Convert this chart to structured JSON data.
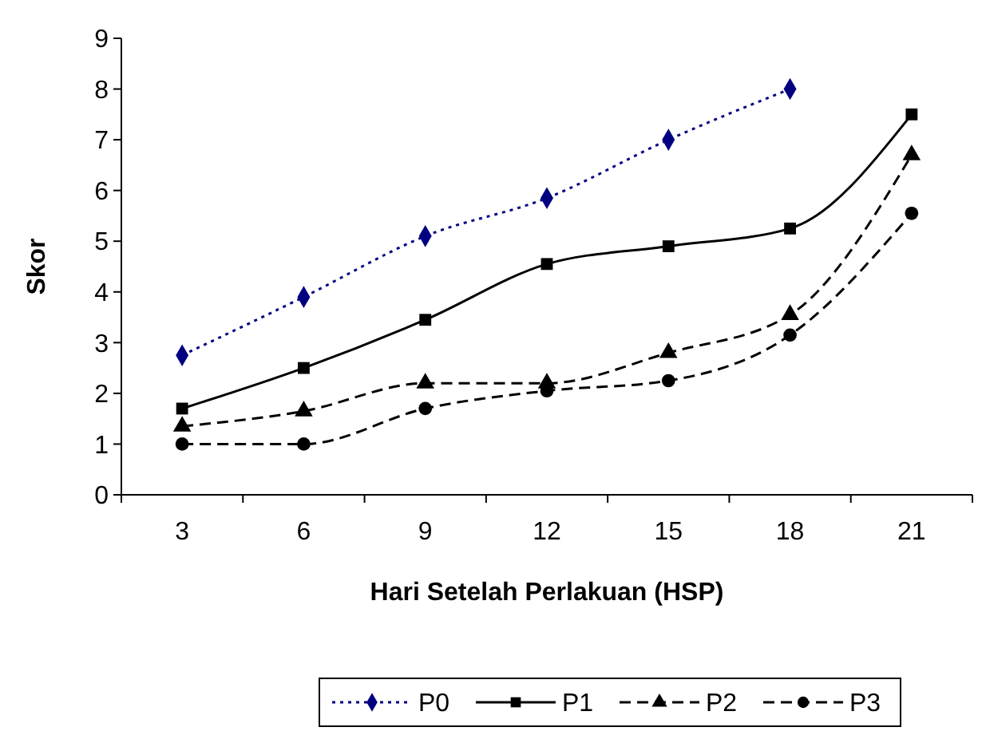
{
  "chart_data": {
    "type": "line",
    "xlabel": "Hari Setelah Perlakuan (HSP)",
    "ylabel": "Skor",
    "categories": [
      "3",
      "6",
      "9",
      "12",
      "15",
      "18",
      "21"
    ],
    "ylim": [
      0,
      9
    ],
    "yticks": [
      0,
      1,
      2,
      3,
      4,
      5,
      6,
      7,
      8,
      9
    ],
    "grid": false,
    "legend": "bottom",
    "series": [
      {
        "name": "P0",
        "color": "#000080",
        "marker": "diamond",
        "line_style": "dotted",
        "values": [
          2.75,
          3.9,
          5.1,
          5.85,
          7.0,
          8.0,
          null
        ]
      },
      {
        "name": "P1",
        "color": "#000000",
        "marker": "square",
        "line_style": "solid",
        "values": [
          1.7,
          2.5,
          3.45,
          4.55,
          4.9,
          5.25,
          7.5
        ]
      },
      {
        "name": "P2",
        "color": "#000000",
        "marker": "triangle",
        "line_style": "dashed",
        "values": [
          1.35,
          1.65,
          2.2,
          2.2,
          2.8,
          3.55,
          6.7
        ]
      },
      {
        "name": "P3",
        "color": "#000000",
        "marker": "circle",
        "line_style": "dashed",
        "values": [
          1.0,
          1.0,
          1.7,
          2.05,
          2.25,
          3.15,
          5.55
        ]
      }
    ]
  }
}
